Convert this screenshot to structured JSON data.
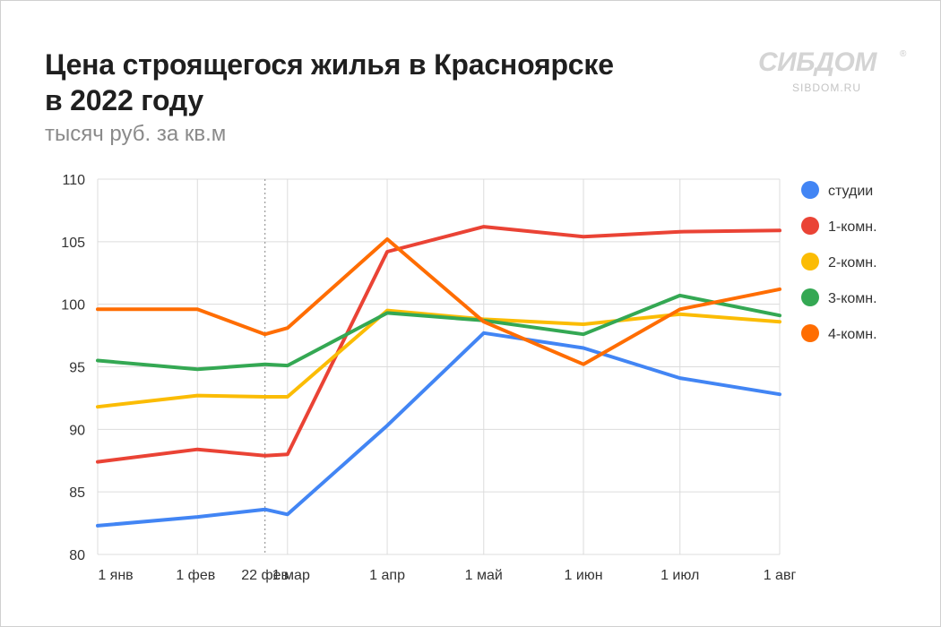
{
  "title_line1": "Цена строящегося жилья в Красноярске",
  "title_line2": "в 2022 году",
  "subtitle": "тысяч руб. за кв.м",
  "logo": {
    "main": "СИБДОМ",
    "reg": "®",
    "sub": "SIBDOM.RU"
  },
  "chart_data": {
    "type": "line",
    "ylim": [
      80,
      110
    ],
    "yticks": [
      80,
      85,
      90,
      95,
      100,
      105,
      110
    ],
    "x_tick_labels": [
      "1 янв",
      "1 фев",
      "22 фев",
      "1 мар",
      "1 апр",
      "1 май",
      "1 июн",
      "1 июл",
      "1 авг"
    ],
    "vertical_grid": [
      "1 янв",
      "1 фев",
      "1 мар",
      "1 апр",
      "1 май",
      "1 июн",
      "1 июл",
      "1 авг"
    ],
    "dotted_marker": "22 фев",
    "x": [
      "1 янв",
      "1 фев",
      "22 фев",
      "1 мар",
      "1 апр",
      "1 май",
      "1 июн",
      "1 июл",
      "1 авг"
    ],
    "series": [
      {
        "name": "студии",
        "color": "#4285F4",
        "values": [
          82.3,
          83.0,
          83.6,
          83.2,
          90.3,
          97.7,
          96.5,
          94.1,
          92.8
        ]
      },
      {
        "name": "1-комн.",
        "color": "#EA4335",
        "values": [
          87.4,
          88.4,
          87.9,
          88.0,
          104.2,
          106.2,
          105.4,
          105.8,
          105.9
        ]
      },
      {
        "name": "2-комн.",
        "color": "#FBBC04",
        "values": [
          91.8,
          92.7,
          92.6,
          92.6,
          99.5,
          98.8,
          98.4,
          99.2,
          98.6
        ]
      },
      {
        "name": "3-комн.",
        "color": "#34A853",
        "values": [
          95.5,
          94.8,
          95.2,
          95.1,
          99.3,
          98.7,
          97.6,
          100.7,
          99.1
        ]
      },
      {
        "name": "4-комн.",
        "color": "#FF6D01",
        "values": [
          99.6,
          99.6,
          97.6,
          98.1,
          105.2,
          98.6,
          95.2,
          99.6,
          101.2
        ]
      }
    ],
    "legend_position": "right",
    "grid": true
  }
}
